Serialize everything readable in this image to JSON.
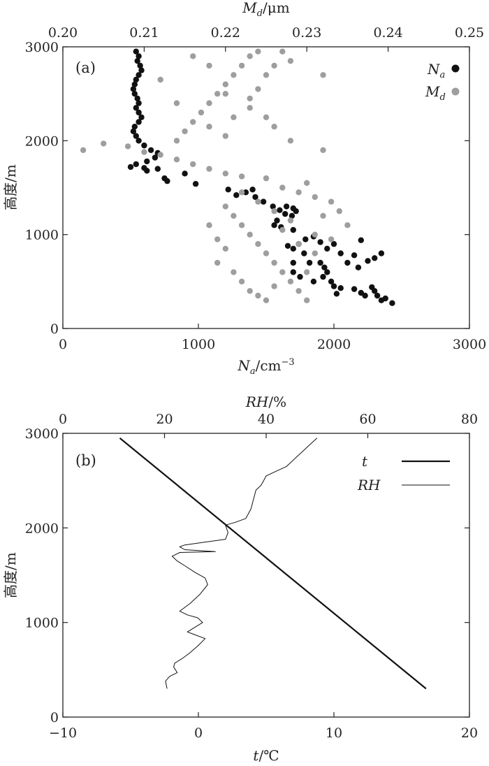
{
  "chart_data": [
    {
      "type": "scatter",
      "panel_label": "(a)",
      "xlabel": {
        "symbol": "N",
        "sub": "a",
        "unit": "/cm",
        "sup": "−3"
      },
      "x2label": {
        "symbol": "M",
        "sub": "d",
        "unit": "/μm"
      },
      "ylabel": "高度/m",
      "xlim": [
        0,
        3000
      ],
      "x2lim": [
        0.2,
        0.25
      ],
      "ylim": [
        0,
        3000
      ],
      "xticks": [
        0,
        1000,
        2000,
        3000
      ],
      "x2ticks": [
        "0.20",
        "0.21",
        "0.22",
        "0.23",
        "0.24",
        "0.25"
      ],
      "yticks": [
        0,
        1000,
        2000,
        3000
      ],
      "grid": false,
      "legend_position": "top-right",
      "series": [
        {
          "name": "N",
          "sub": "a",
          "axis": "bottom",
          "color": "#111111",
          "points": [
            [
              540,
              2950
            ],
            [
              560,
              2900
            ],
            [
              550,
              2850
            ],
            [
              570,
              2800
            ],
            [
              580,
              2750
            ],
            [
              560,
              2700
            ],
            [
              540,
              2650
            ],
            [
              530,
              2600
            ],
            [
              520,
              2550
            ],
            [
              530,
              2500
            ],
            [
              550,
              2450
            ],
            [
              560,
              2400
            ],
            [
              540,
              2350
            ],
            [
              560,
              2300
            ],
            [
              580,
              2250
            ],
            [
              560,
              2200
            ],
            [
              530,
              2150
            ],
            [
              520,
              2100
            ],
            [
              540,
              2050
            ],
            [
              560,
              2000
            ],
            [
              600,
              1950
            ],
            [
              650,
              1900
            ],
            [
              700,
              1870
            ],
            [
              680,
              1820
            ],
            [
              620,
              1780
            ],
            [
              540,
              1750
            ],
            [
              500,
              1720
            ],
            [
              600,
              1710
            ],
            [
              700,
              1700
            ],
            [
              620,
              1680
            ],
            [
              750,
              1600
            ],
            [
              770,
              1570
            ],
            [
              900,
              1650
            ],
            [
              980,
              1540
            ],
            [
              1220,
              1480
            ],
            [
              1280,
              1420
            ],
            [
              1350,
              1450
            ],
            [
              1400,
              1480
            ],
            [
              1420,
              1400
            ],
            [
              1480,
              1350
            ],
            [
              1550,
              1300
            ],
            [
              1600,
              1260
            ],
            [
              1650,
              1300
            ],
            [
              1700,
              1280
            ],
            [
              1720,
              1250
            ],
            [
              1690,
              1200
            ],
            [
              1640,
              1220
            ],
            [
              1580,
              1150
            ],
            [
              1560,
              1100
            ],
            [
              1610,
              1080
            ],
            [
              1700,
              1050
            ],
            [
              1740,
              900
            ],
            [
              1790,
              950
            ],
            [
              1700,
              850
            ],
            [
              1660,
              880
            ],
            [
              1850,
              980
            ],
            [
              1900,
              920
            ],
            [
              1950,
              850
            ],
            [
              2000,
              900
            ],
            [
              2050,
              800
            ],
            [
              2100,
              700
            ],
            [
              2150,
              780
            ],
            [
              2200,
              940
            ],
            [
              2350,
              800
            ],
            [
              2300,
              750
            ],
            [
              2250,
              720
            ],
            [
              2180,
              650
            ],
            [
              1900,
              700
            ],
            [
              1930,
              650
            ],
            [
              1950,
              600
            ],
            [
              1920,
              550
            ],
            [
              1980,
              500
            ],
            [
              2000,
              450
            ],
            [
              2050,
              430
            ],
            [
              2020,
              370
            ],
            [
              2150,
              420
            ],
            [
              2200,
              380
            ],
            [
              2230,
              350
            ],
            [
              2280,
              440
            ],
            [
              2300,
              400
            ],
            [
              2320,
              350
            ],
            [
              2350,
              300
            ],
            [
              2380,
              320
            ],
            [
              2430,
              270
            ],
            [
              1700,
              700
            ],
            [
              1780,
              800
            ],
            [
              1820,
              700
            ],
            [
              1700,
              600
            ],
            [
              1750,
              550
            ],
            [
              1850,
              500
            ]
          ]
        },
        {
          "name": "M",
          "sub": "d",
          "axis": "top",
          "color": "#9e9e9e",
          "points": [
            [
              0.2025,
              1900
            ],
            [
              0.205,
              1970
            ],
            [
              0.208,
              1940
            ],
            [
              0.21,
              1880
            ],
            [
              0.212,
              1850
            ],
            [
              0.214,
              1800
            ],
            [
              0.216,
              1750
            ],
            [
              0.218,
              1700
            ],
            [
              0.22,
              1650
            ],
            [
              0.222,
              1620
            ],
            [
              0.214,
              2000
            ],
            [
              0.215,
              2100
            ],
            [
              0.216,
              2200
            ],
            [
              0.217,
              2300
            ],
            [
              0.218,
              2400
            ],
            [
              0.219,
              2500
            ],
            [
              0.22,
              2600
            ],
            [
              0.221,
              2700
            ],
            [
              0.222,
              2800
            ],
            [
              0.223,
              2900
            ],
            [
              0.224,
              2950
            ],
            [
              0.212,
              2650
            ],
            [
              0.214,
              2400
            ],
            [
              0.218,
              2150
            ],
            [
              0.22,
              2050
            ],
            [
              0.221,
              2250
            ],
            [
              0.223,
              2350
            ],
            [
              0.224,
              2550
            ],
            [
              0.225,
              2700
            ],
            [
              0.226,
              2800
            ],
            [
              0.227,
              2950
            ],
            [
              0.228,
              2850
            ],
            [
              0.232,
              2700
            ],
            [
              0.232,
              1900
            ],
            [
              0.216,
              2900
            ],
            [
              0.218,
              2800
            ],
            [
              0.22,
              2500
            ],
            [
              0.223,
              2450
            ],
            [
              0.225,
              2250
            ],
            [
              0.226,
              2150
            ],
            [
              0.228,
              2000
            ],
            [
              0.225,
              1600
            ],
            [
              0.227,
              1500
            ],
            [
              0.229,
              1450
            ],
            [
              0.231,
              1400
            ],
            [
              0.233,
              1350
            ],
            [
              0.22,
              1300
            ],
            [
              0.221,
              1200
            ],
            [
              0.222,
              1100
            ],
            [
              0.223,
              1000
            ],
            [
              0.224,
              900
            ],
            [
              0.225,
              800
            ],
            [
              0.226,
              700
            ],
            [
              0.227,
              600
            ],
            [
              0.228,
              500
            ],
            [
              0.229,
              400
            ],
            [
              0.23,
              300
            ],
            [
              0.218,
              1100
            ],
            [
              0.219,
              950
            ],
            [
              0.22,
              850
            ],
            [
              0.219,
              700
            ],
            [
              0.221,
              600
            ],
            [
              0.222,
              500
            ],
            [
              0.223,
              400
            ],
            [
              0.224,
              350
            ],
            [
              0.225,
              300
            ],
            [
              0.227,
              1050
            ],
            [
              0.229,
              900
            ],
            [
              0.231,
              800
            ],
            [
              0.23,
              600
            ],
            [
              0.232,
              1200
            ],
            [
              0.234,
              1250
            ],
            [
              0.231,
              1000
            ],
            [
              0.233,
              950
            ],
            [
              0.235,
              1100
            ],
            [
              0.228,
              1150
            ],
            [
              0.226,
              1250
            ],
            [
              0.224,
              1350
            ],
            [
              0.222,
              1450
            ],
            [
              0.23,
              1550
            ],
            [
              0.226,
              450
            ]
          ]
        }
      ]
    },
    {
      "type": "line",
      "panel_label": "(b)",
      "xlabel": {
        "symbol": "t",
        "unit": "/℃"
      },
      "x2label": {
        "symbol": "RH",
        "unit": "/%"
      },
      "ylabel": "高度/m",
      "xlim": [
        -10,
        20
      ],
      "x2lim": [
        0,
        80
      ],
      "ylim": [
        0,
        3000
      ],
      "xticks": [
        "−10",
        "0",
        "10",
        "20"
      ],
      "x2ticks": [
        0,
        20,
        40,
        60,
        80
      ],
      "yticks": [
        0,
        1000,
        2000,
        3000
      ],
      "grid": false,
      "legend_position": "top-right",
      "series": [
        {
          "name": "t",
          "axis": "bottom",
          "stroke": 2.2,
          "points": [
            [
              -5.8,
              2950
            ],
            [
              16.8,
              300
            ]
          ]
        },
        {
          "name": "RH",
          "axis": "top",
          "stroke": 1.0,
          "points": [
            [
              20.5,
              300
            ],
            [
              20.2,
              380
            ],
            [
              21,
              430
            ],
            [
              22.5,
              470
            ],
            [
              21.8,
              530
            ],
            [
              22,
              570
            ],
            [
              23.5,
              620
            ],
            [
              25,
              680
            ],
            [
              26.5,
              750
            ],
            [
              28,
              830
            ],
            [
              25.5,
              880
            ],
            [
              24.5,
              900
            ],
            [
              26,
              950
            ],
            [
              27.5,
              1000
            ],
            [
              26.5,
              1050
            ],
            [
              24.5,
              1080
            ],
            [
              23,
              1120
            ],
            [
              25,
              1200
            ],
            [
              27,
              1300
            ],
            [
              28.5,
              1400
            ],
            [
              28,
              1470
            ],
            [
              26,
              1530
            ],
            [
              24,
              1600
            ],
            [
              22.5,
              1650
            ],
            [
              21.5,
              1700
            ],
            [
              23,
              1740
            ],
            [
              30,
              1750
            ],
            [
              24,
              1770
            ],
            [
              23,
              1800
            ],
            [
              24,
              1820
            ],
            [
              28,
              1850
            ],
            [
              32,
              1880
            ],
            [
              32.5,
              1950
            ],
            [
              32,
              2030
            ],
            [
              34,
              2060
            ],
            [
              36,
              2100
            ],
            [
              37,
              2200
            ],
            [
              37.5,
              2300
            ],
            [
              38,
              2400
            ],
            [
              39,
              2450
            ],
            [
              39.5,
              2500
            ],
            [
              40,
              2550
            ],
            [
              42,
              2600
            ],
            [
              44,
              2650
            ],
            [
              45,
              2700
            ],
            [
              46,
              2750
            ],
            [
              47,
              2800
            ],
            [
              48,
              2850
            ],
            [
              49,
              2900
            ],
            [
              50,
              2950
            ]
          ]
        }
      ]
    }
  ]
}
